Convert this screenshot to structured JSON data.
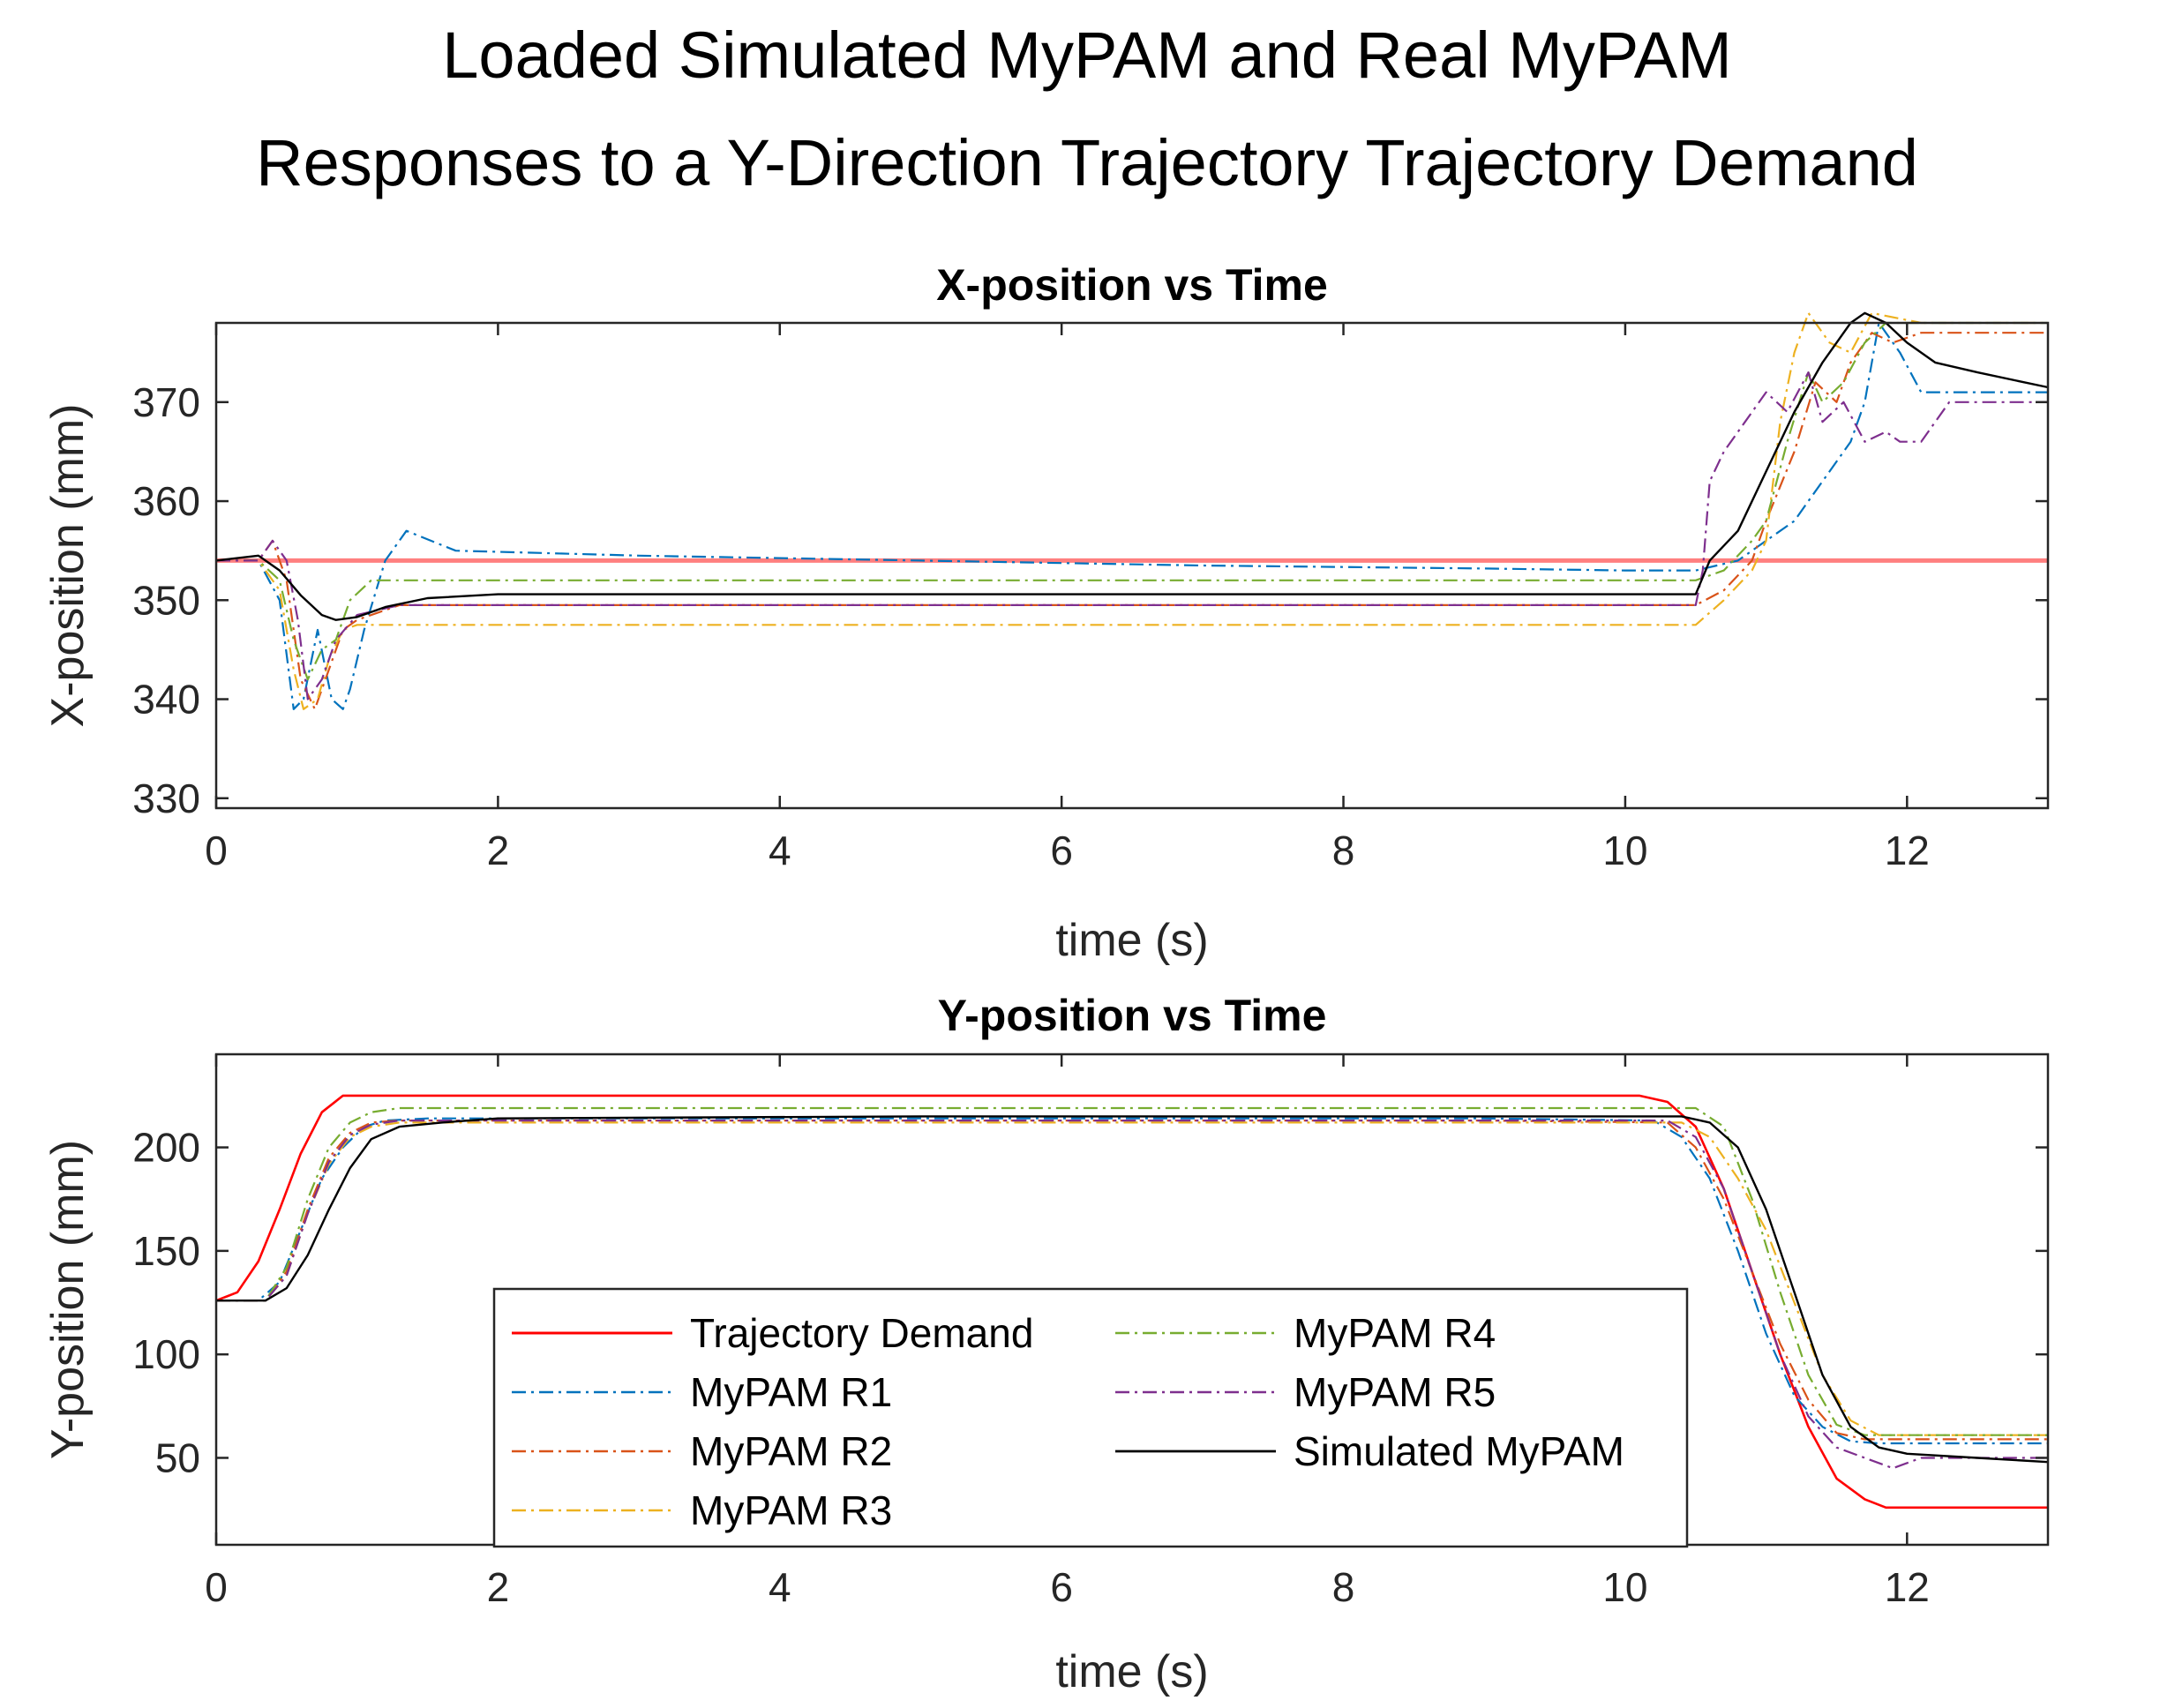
{
  "figure_title": [
    "Loaded Simulated MyPAM and Real MyPAM",
    "Responses to a Y-Direction Trajectory Trajectory Demand"
  ],
  "series_colors": {
    "Trajectory Demand": "#ff0000",
    "MyPAM R1": "#0072bd",
    "MyPAM R2": "#d95319",
    "MyPAM R3": "#edb120",
    "MyPAM R4": "#77ac30",
    "MyPAM R5": "#7e2f8e",
    "Simulated MyPAM": "#000000"
  },
  "chart_data": [
    {
      "type": "line",
      "title": "X-position vs Time",
      "xlabel": "time (s)",
      "ylabel": "X-position (mm)",
      "xlim": [
        0,
        13
      ],
      "ylim": [
        329,
        378
      ],
      "xticks": [
        0,
        2,
        4,
        6,
        8,
        10,
        12
      ],
      "yticks": [
        330,
        340,
        350,
        360,
        370
      ],
      "series": [
        {
          "name": "Trajectory Demand",
          "x": [
            0,
            13
          ],
          "y": [
            354,
            354
          ]
        },
        {
          "name": "MyPAM R1",
          "x": [
            0,
            0.3,
            0.45,
            0.55,
            0.62,
            0.72,
            0.82,
            0.9,
            0.95,
            1.05,
            1.2,
            1.35,
            1.7,
            3,
            5,
            7,
            9,
            10,
            10.5,
            10.65,
            10.8,
            11.0,
            11.2,
            11.3,
            11.45,
            11.6,
            11.7,
            11.8,
            11.95,
            12.1,
            12.5,
            13
          ],
          "y": [
            354,
            354,
            350,
            339,
            340,
            347,
            340,
            339,
            341,
            347,
            354,
            357,
            355,
            354.5,
            354,
            353.5,
            353.2,
            353,
            353,
            353.5,
            354,
            356,
            358,
            360,
            363,
            366,
            370,
            378,
            375,
            371,
            371,
            371
          ]
        },
        {
          "name": "MyPAM R2",
          "x": [
            0,
            0.3,
            0.4,
            0.5,
            0.6,
            0.7,
            0.8,
            0.9,
            1.0,
            1.3,
            2,
            5,
            9,
            10.5,
            10.7,
            10.9,
            11.0,
            11.2,
            11.35,
            11.5,
            11.6,
            11.75,
            11.9,
            12.1,
            12.5,
            13
          ],
          "y": [
            354,
            354,
            356,
            352,
            342,
            339,
            343,
            347,
            348,
            349.5,
            349.5,
            349.5,
            349.5,
            349.5,
            351,
            354,
            358,
            365,
            372,
            370,
            374,
            377,
            376,
            377,
            377,
            377
          ]
        },
        {
          "name": "MyPAM R3",
          "x": [
            0,
            0.3,
            0.45,
            0.55,
            0.62,
            0.72,
            0.8,
            0.9,
            1.0,
            1.5,
            5,
            9,
            10.5,
            10.7,
            10.9,
            11.0,
            11.1,
            11.2,
            11.3,
            11.45,
            11.6,
            11.75,
            12.1,
            13
          ],
          "y": [
            354,
            354,
            351,
            343,
            339,
            340,
            344,
            347,
            347.5,
            347.5,
            347.5,
            347.5,
            347.5,
            350,
            353,
            356,
            368,
            375,
            379,
            376,
            375,
            379,
            378,
            378
          ]
        },
        {
          "name": "MyPAM R4",
          "x": [
            0,
            0.3,
            0.45,
            0.55,
            0.65,
            0.75,
            0.85,
            0.95,
            1.1,
            2,
            5,
            9,
            10.5,
            10.7,
            10.9,
            11.0,
            11.15,
            11.3,
            11.4,
            11.55,
            11.7,
            11.85,
            12.1,
            13
          ],
          "y": [
            354,
            354,
            352,
            346,
            342,
            345,
            346,
            350,
            352,
            352,
            352,
            352,
            352,
            353,
            356,
            358,
            366,
            373,
            370,
            372,
            376,
            378,
            378,
            378
          ]
        },
        {
          "name": "MyPAM R5",
          "x": [
            0,
            0.3,
            0.4,
            0.5,
            0.58,
            0.65,
            0.75,
            0.85,
            1.0,
            1.3,
            2,
            5,
            9,
            10.5,
            10.55,
            10.6,
            10.7,
            10.85,
            11.0,
            11.15,
            11.3,
            11.4,
            11.55,
            11.7,
            11.85,
            11.95,
            12.1,
            12.3,
            12.5,
            13
          ],
          "y": [
            354,
            354,
            356,
            354,
            348,
            340,
            342,
            346,
            348.5,
            349.5,
            349.5,
            349.5,
            349.5,
            349.5,
            353,
            362,
            365,
            368,
            371,
            369,
            373,
            368,
            370,
            366,
            367,
            366,
            366,
            370,
            370,
            370
          ]
        },
        {
          "name": "Simulated MyPAM",
          "x": [
            0,
            0.3,
            0.45,
            0.6,
            0.75,
            0.85,
            1.0,
            1.2,
            1.5,
            2,
            3,
            5,
            8,
            10.0,
            10.5,
            10.6,
            10.8,
            11.0,
            11.2,
            11.4,
            11.6,
            11.7,
            11.85,
            12.0,
            12.2,
            12.5,
            13
          ],
          "y": [
            354,
            354.5,
            353,
            350.5,
            348.5,
            348,
            348.3,
            349.3,
            350.2,
            350.6,
            350.6,
            350.6,
            350.6,
            350.6,
            350.6,
            354,
            357,
            363,
            369,
            374,
            378,
            379,
            378,
            376,
            374,
            373,
            371.5
          ]
        }
      ]
    },
    {
      "type": "line",
      "title": "Y-position vs Time",
      "xlabel": "time (s)",
      "ylabel": "Y-position (mm)",
      "xlim": [
        0,
        13
      ],
      "ylim": [
        8,
        245
      ],
      "xticks": [
        0,
        2,
        4,
        6,
        8,
        10,
        12
      ],
      "yticks": [
        50,
        100,
        150,
        200
      ],
      "legend": {
        "position": "inside-bottom-center",
        "entries": [
          "Trajectory Demand",
          "MyPAM R1",
          "MyPAM R2",
          "MyPAM R3",
          "MyPAM R4",
          "MyPAM R5",
          "Simulated MyPAM"
        ]
      },
      "series": [
        {
          "name": "Trajectory Demand",
          "x": [
            0,
            0.15,
            0.3,
            0.45,
            0.6,
            0.75,
            0.9,
            1.0,
            10.1,
            10.3,
            10.5,
            10.7,
            10.9,
            11.1,
            11.3,
            11.5,
            11.7,
            11.85,
            12.0,
            13
          ],
          "y": [
            126,
            130,
            145,
            170,
            197,
            217,
            225,
            225,
            225,
            222,
            210,
            180,
            140,
            100,
            65,
            40,
            30,
            26,
            26,
            26
          ]
        },
        {
          "name": "MyPAM R1",
          "x": [
            0,
            0.3,
            0.45,
            0.6,
            0.75,
            0.9,
            1.05,
            1.2,
            1.5,
            2,
            5,
            9,
            10.2,
            10.4,
            10.6,
            10.8,
            11.0,
            11.2,
            11.4,
            11.6,
            11.8,
            12.5,
            13
          ],
          "y": [
            126,
            126,
            135,
            160,
            185,
            200,
            210,
            213,
            214,
            214,
            214,
            214,
            213,
            205,
            185,
            150,
            110,
            80,
            65,
            58,
            57,
            57,
            57
          ]
        },
        {
          "name": "MyPAM R2",
          "x": [
            0,
            0.35,
            0.5,
            0.65,
            0.8,
            0.95,
            1.1,
            1.3,
            2,
            5,
            9,
            10.3,
            10.5,
            10.7,
            10.9,
            11.1,
            11.3,
            11.5,
            11.7,
            12.5,
            13
          ],
          "y": [
            126,
            126,
            140,
            170,
            195,
            207,
            212,
            213,
            213,
            213,
            213,
            212,
            200,
            175,
            140,
            105,
            78,
            62,
            59,
            59,
            59
          ]
        },
        {
          "name": "MyPAM R3",
          "x": [
            0,
            0.35,
            0.5,
            0.65,
            0.8,
            0.95,
            1.1,
            1.3,
            2,
            5,
            9,
            10.4,
            10.6,
            10.8,
            11.0,
            11.2,
            11.4,
            11.6,
            11.8,
            12.5,
            13
          ],
          "y": [
            126,
            126,
            138,
            168,
            192,
            205,
            210,
            212,
            212,
            212,
            212,
            212,
            205,
            185,
            160,
            125,
            90,
            68,
            61,
            61,
            61
          ]
        },
        {
          "name": "MyPAM R4",
          "x": [
            0,
            0.35,
            0.5,
            0.65,
            0.8,
            0.95,
            1.1,
            1.3,
            2,
            5,
            9,
            10.5,
            10.7,
            10.9,
            11.1,
            11.3,
            11.5,
            11.7,
            12.5,
            13
          ],
          "y": [
            126,
            126,
            142,
            175,
            200,
            212,
            217,
            219,
            219,
            219,
            219,
            219,
            210,
            175,
            130,
            90,
            66,
            61,
            61,
            61
          ]
        },
        {
          "name": "MyPAM R5",
          "x": [
            0,
            0.35,
            0.5,
            0.65,
            0.8,
            0.95,
            1.1,
            1.3,
            2,
            5,
            9,
            10.3,
            10.5,
            10.7,
            10.9,
            11.1,
            11.3,
            11.5,
            11.7,
            11.9,
            12.1,
            12.5,
            13
          ],
          "y": [
            126,
            126,
            138,
            168,
            193,
            206,
            211,
            213,
            213,
            213,
            213,
            213,
            205,
            180,
            140,
            100,
            70,
            55,
            50,
            45,
            50,
            50,
            50
          ]
        },
        {
          "name": "Simulated MyPAM",
          "x": [
            0,
            0.35,
            0.5,
            0.65,
            0.8,
            0.95,
            1.1,
            1.3,
            1.6,
            2,
            5,
            9,
            10.4,
            10.6,
            10.8,
            11.0,
            11.2,
            11.4,
            11.6,
            11.8,
            12.0,
            12.5,
            13
          ],
          "y": [
            126,
            126,
            132,
            148,
            170,
            190,
            204,
            210,
            212,
            214,
            215,
            215,
            215,
            212,
            200,
            170,
            130,
            90,
            65,
            55,
            52,
            50,
            48
          ]
        }
      ]
    }
  ]
}
